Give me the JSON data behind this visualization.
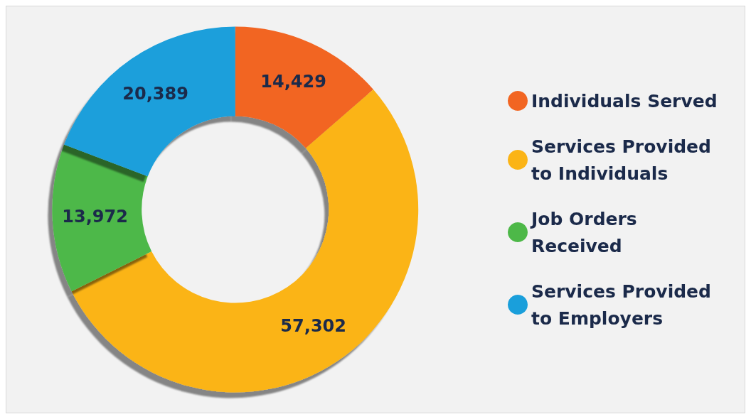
{
  "chart_data": {
    "type": "donut",
    "categories": [
      "Individuals Served",
      "Services Provided to Individuals",
      "Job Orders Received",
      "Services Provided to Employers"
    ],
    "values": [
      14429,
      57302,
      13972,
      20389
    ],
    "colors": [
      "#f26522",
      "#fbb416",
      "#4db848",
      "#1a9fdb"
    ],
    "value_labels": [
      "14,429",
      "57,302",
      "13,972",
      "20,389"
    ],
    "legend": "right"
  }
}
